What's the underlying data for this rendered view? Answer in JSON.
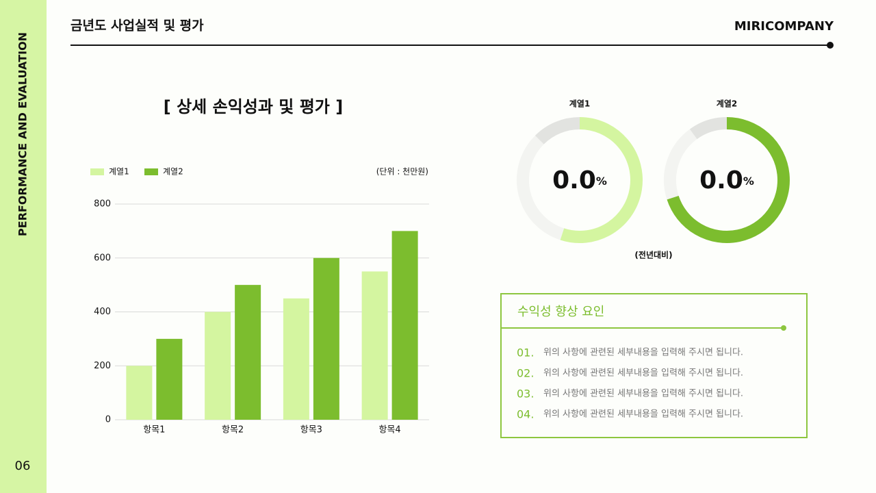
{
  "sidebar": {
    "label": "PERFORMANCE AND EVALUATION",
    "page": "06"
  },
  "header": {
    "title": "금년도 사업실적 및 평가",
    "brand": "MIRICOMPANY"
  },
  "chart_data": [
    {
      "type": "bar",
      "title": "[ 상세 손익성과 및 평가 ]",
      "unit": "(단위 : 천만원)",
      "categories": [
        "항목1",
        "항목2",
        "항목3",
        "항목4"
      ],
      "series": [
        {
          "name": "계열1",
          "color": "#d4f5a0",
          "values": [
            200,
            400,
            450,
            550
          ]
        },
        {
          "name": "계열2",
          "color": "#7cbd2e",
          "values": [
            300,
            500,
            600,
            700
          ]
        }
      ],
      "ylim": [
        0,
        800
      ],
      "yticks": [
        0,
        200,
        400,
        600,
        800
      ],
      "grid": true,
      "legend": "top-left"
    },
    {
      "type": "pie",
      "title": "계열1",
      "center_value": "0.0",
      "center_unit": "%",
      "values": [
        55,
        32.5,
        12.5
      ],
      "colors": [
        "#d4f5a0",
        "#f3f4f1",
        "#e2e3e0"
      ]
    },
    {
      "type": "pie",
      "title": "계열2",
      "center_value": "0.0",
      "center_unit": "%",
      "values": [
        70,
        20,
        10
      ],
      "colors": [
        "#7cbd2e",
        "#f3f4f1",
        "#e2e3e0"
      ]
    }
  ],
  "donut_note": "(전년대비)",
  "factors": {
    "title": "수익성 향상 요인",
    "items": [
      {
        "number": "01.",
        "text": "위의 사항에 관련된 세부내용을 입력해 주시면 됩니다."
      },
      {
        "number": "02.",
        "text": "위의 사항에 관련된 세부내용을 입력해 주시면 됩니다."
      },
      {
        "number": "03.",
        "text": "위의 사항에 관련된 세부내용을 입력해 주시면 됩니다."
      },
      {
        "number": "04.",
        "text": "위의 사항에 관련된 세부내용을 입력해 주시면 됩니다."
      }
    ]
  }
}
